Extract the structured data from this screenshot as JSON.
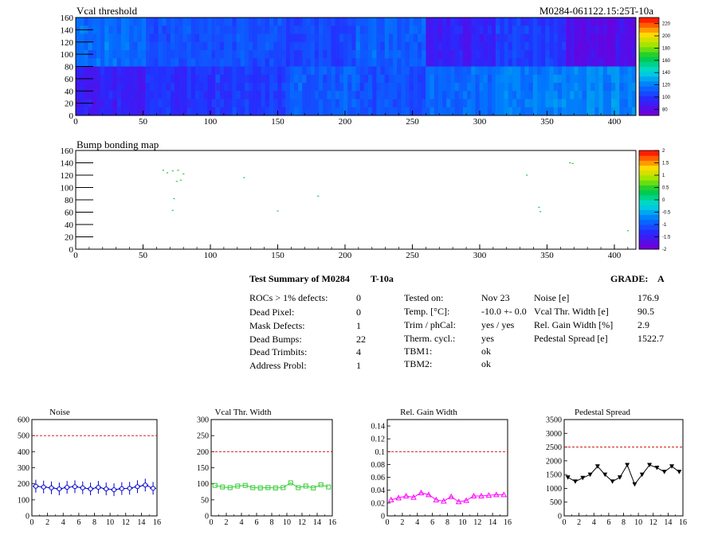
{
  "heatmap1": {
    "title": "Vcal threshold",
    "module_label": "M0284-061122.15:25T-10a",
    "xticks": [
      "0",
      "50",
      "100",
      "150",
      "200",
      "250",
      "300",
      "350",
      "400"
    ],
    "yticks": [
      "0",
      "20",
      "40",
      "60",
      "80",
      "100",
      "120",
      "140",
      "160"
    ],
    "colorbar_ticks": [
      "80",
      "100",
      "120",
      "140",
      "160",
      "180",
      "200",
      "220"
    ]
  },
  "heatmap2": {
    "title": "Bump bonding map",
    "xticks": [
      "0",
      "50",
      "100",
      "150",
      "200",
      "250",
      "300",
      "350",
      "400"
    ],
    "yticks": [
      "0",
      "20",
      "40",
      "60",
      "80",
      "100",
      "120",
      "140",
      "160"
    ],
    "colorbar_ticks": [
      "-2",
      "-1.5",
      "-1",
      "-0.5",
      "0",
      "0.5",
      "1",
      "1.5",
      "2"
    ]
  },
  "summary": {
    "title": "Test Summary of M0284",
    "temp_tag": "T-10a",
    "grade_label": "GRADE:",
    "grade": "A",
    "left": [
      {
        "label": "ROCs > 1% defects:",
        "value": "0"
      },
      {
        "label": "Dead Pixel:",
        "value": "0"
      },
      {
        "label": "Mask Defects:",
        "value": "1"
      },
      {
        "label": "Dead Bumps:",
        "value": "22"
      },
      {
        "label": "Dead Trimbits:",
        "value": "4"
      },
      {
        "label": "Address Probl:",
        "value": "1"
      }
    ],
    "mid": [
      {
        "label": "Tested on:",
        "value": "Nov 23"
      },
      {
        "label": "Temp. [°C]:",
        "value": "-10.0 +- 0.0"
      },
      {
        "label": "Trim / phCal:",
        "value": "yes / yes"
      },
      {
        "label": "Therm. cycl.:",
        "value": "yes"
      },
      {
        "label": "TBM1:",
        "value": "ok"
      },
      {
        "label": "TBM2:",
        "value": "ok"
      }
    ],
    "right": [
      {
        "label": "Noise [e]",
        "value": "176.9"
      },
      {
        "label": "Vcal Thr. Width [e]",
        "value": "90.5"
      },
      {
        "label": "Rel. Gain Width [%]",
        "value": "2.9"
      },
      {
        "label": "Pedestal Spread [e]",
        "value": "1522.7"
      }
    ]
  },
  "colors": {
    "noise": "#0000cc",
    "vcal": "#33cc33",
    "gain": "#ff00ff",
    "pedestal": "#000000",
    "limit": "#cc0000"
  },
  "chart_data": [
    {
      "type": "heatmap",
      "title": "Vcal threshold",
      "xlim": [
        0,
        416
      ],
      "ylim": [
        0,
        160
      ],
      "zlim": [
        70,
        230
      ],
      "roc_means": {
        "top": [
          115,
          105,
          108,
          103,
          110,
          88,
          100,
          80
        ],
        "bottom": [
          88,
          96,
          100,
          110,
          105,
          113,
          118,
          122
        ]
      }
    },
    {
      "type": "scatter",
      "title": "Bump bonding map",
      "xlim": [
        0,
        416
      ],
      "ylim": [
        0,
        160
      ],
      "points": [
        [
          65,
          128
        ],
        [
          68,
          124
        ],
        [
          72,
          127
        ],
        [
          76,
          128
        ],
        [
          80,
          122
        ],
        [
          75,
          110
        ],
        [
          78,
          112
        ],
        [
          73,
          82
        ],
        [
          72,
          63
        ],
        [
          125,
          116
        ],
        [
          150,
          62
        ],
        [
          180,
          86
        ],
        [
          335,
          120
        ],
        [
          344,
          68
        ],
        [
          345,
          61
        ],
        [
          367,
          140
        ],
        [
          369,
          139
        ],
        [
          410,
          30
        ]
      ]
    },
    {
      "type": "line",
      "title": "Noise",
      "xlim": [
        0,
        16
      ],
      "ylim": [
        0,
        600
      ],
      "limit": 500,
      "x": [
        0,
        1,
        2,
        3,
        4,
        5,
        6,
        7,
        8,
        9,
        10,
        11,
        12,
        13,
        14,
        15
      ],
      "values": [
        185,
        180,
        175,
        168,
        178,
        182,
        175,
        168,
        178,
        168,
        163,
        170,
        172,
        182,
        192,
        172
      ]
    },
    {
      "type": "line",
      "title": "Vcal Thr. Width",
      "xlim": [
        0,
        16
      ],
      "ylim": [
        0,
        300
      ],
      "limit": 200,
      "x": [
        0,
        1,
        2,
        3,
        4,
        5,
        6,
        7,
        8,
        9,
        10,
        11,
        12,
        13,
        14,
        15
      ],
      "values": [
        95,
        90,
        88,
        93,
        95,
        88,
        87,
        88,
        87,
        88,
        103,
        88,
        93,
        87,
        97,
        90
      ]
    },
    {
      "type": "line",
      "title": "Rel. Gain Width",
      "xlim": [
        0,
        16
      ],
      "ylim": [
        0,
        0.15
      ],
      "limit": 0.1,
      "x": [
        0,
        1,
        2,
        3,
        4,
        5,
        6,
        7,
        8,
        9,
        10,
        11,
        12,
        13,
        14,
        15
      ],
      "values": [
        0.025,
        0.028,
        0.031,
        0.029,
        0.036,
        0.033,
        0.025,
        0.023,
        0.03,
        0.022,
        0.024,
        0.031,
        0.031,
        0.032,
        0.033,
        0.033
      ]
    },
    {
      "type": "line",
      "title": "Pedestal Spread",
      "xlim": [
        0,
        16
      ],
      "ylim": [
        0,
        3500
      ],
      "limit": 2500,
      "x": [
        0,
        1,
        2,
        3,
        4,
        5,
        6,
        7,
        8,
        9,
        10,
        11,
        12,
        13,
        14,
        15
      ],
      "values": [
        1400,
        1250,
        1380,
        1500,
        1800,
        1500,
        1250,
        1400,
        1850,
        1150,
        1500,
        1850,
        1750,
        1600,
        1800,
        1600
      ]
    }
  ]
}
